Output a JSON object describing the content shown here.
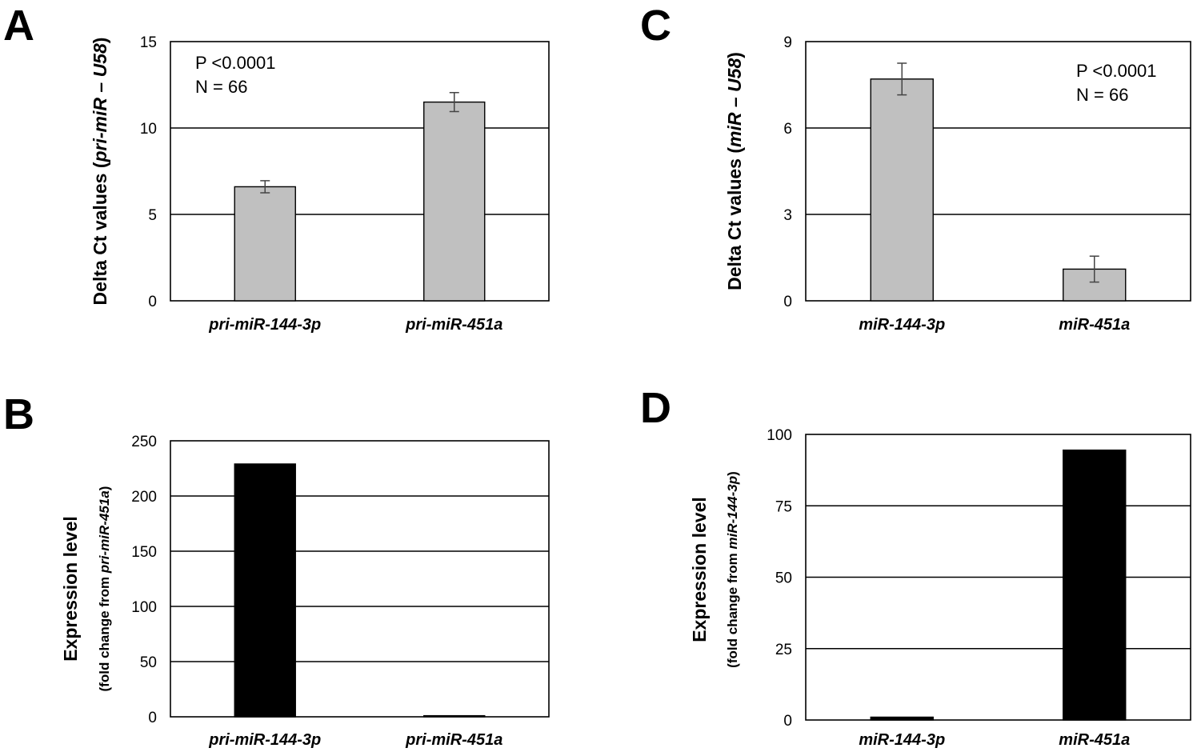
{
  "chart_data": [
    {
      "panel": "A",
      "type": "bar",
      "categories": [
        "pri-miR-144-3p",
        "pri-miR-451a"
      ],
      "values": [
        6.6,
        11.5
      ],
      "errors": [
        0.35,
        0.55
      ],
      "bar_color": "#c0c0c0",
      "ylim": [
        0,
        15
      ],
      "yticks": [
        "0",
        "5",
        "10",
        "15"
      ],
      "ylabel_plain": "Delta Ct values (",
      "ylabel_italic": "pri-miR – U58",
      "ylabel_close": ")",
      "annotation": [
        "P <0.0001",
        "N = 66"
      ],
      "grid": true
    },
    {
      "panel": "B",
      "type": "bar",
      "categories": [
        "pri-miR-144-3p",
        "pri-miR-451a"
      ],
      "values": [
        229,
        1
      ],
      "bar_color": "#000000",
      "ylim": [
        0,
        250
      ],
      "yticks": [
        "0",
        "50",
        "100",
        "150",
        "200",
        "250"
      ],
      "ylabel_main": "Expression level",
      "ylabel_sub_plain": "fold change from ",
      "ylabel_sub_italic": "pri-miR-451a",
      "grid": true
    },
    {
      "panel": "C",
      "type": "bar",
      "categories": [
        "miR-144-3p",
        "miR-451a"
      ],
      "values": [
        7.7,
        1.1
      ],
      "errors": [
        0.55,
        0.45
      ],
      "bar_color": "#c0c0c0",
      "ylim": [
        0,
        9
      ],
      "yticks": [
        "0",
        "3",
        "6",
        "9"
      ],
      "ylabel_plain": "Delta Ct values (",
      "ylabel_italic": "miR – U58",
      "ylabel_close": ")",
      "annotation": [
        "P <0.0001",
        "N = 66"
      ],
      "grid": true
    },
    {
      "panel": "D",
      "type": "bar",
      "categories": [
        "miR-144-3p",
        "miR-451a"
      ],
      "values": [
        1,
        94.5
      ],
      "bar_color": "#000000",
      "ylim": [
        0,
        100
      ],
      "yticks": [
        "0",
        "25",
        "50",
        "75",
        "100"
      ],
      "ylabel_main": "Expression level",
      "ylabel_sub_plain": "fold change from ",
      "ylabel_sub_italic": "miR-144-3p",
      "grid": true
    }
  ]
}
